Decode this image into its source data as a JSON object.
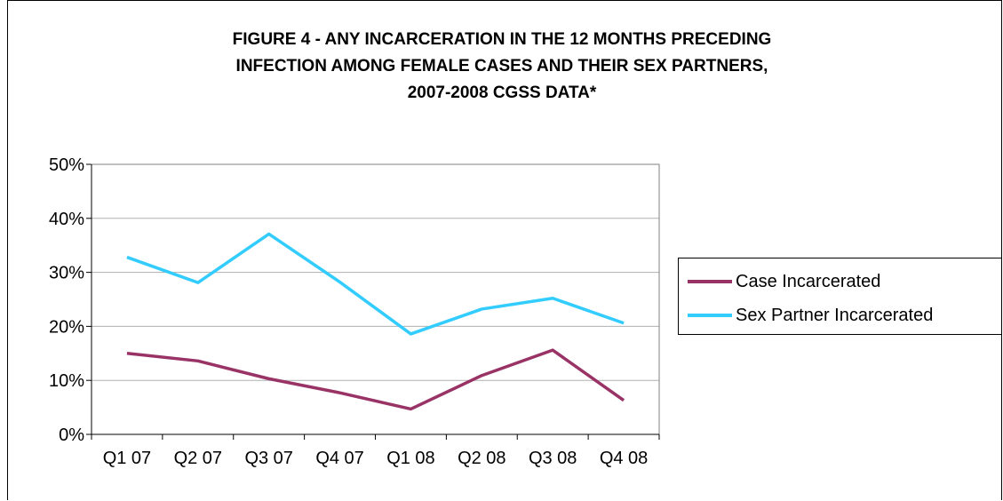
{
  "chart_data": {
    "type": "line",
    "title_lines": [
      "FIGURE 4 - ANY INCARCERATION IN THE 12 MONTHS PRECEDING",
      "INFECTION AMONG FEMALE CASES AND THEIR SEX PARTNERS,",
      "2007-2008 CGSS DATA*"
    ],
    "categories": [
      "Q1 07",
      "Q2 07",
      "Q3 07",
      "Q4 07",
      "Q1 08",
      "Q2 08",
      "Q3 08",
      "Q4 08"
    ],
    "y_ticks": [
      "0%",
      "10%",
      "20%",
      "30%",
      "40%",
      "50%"
    ],
    "ylim": [
      0,
      50
    ],
    "y_unit": "%",
    "grid": true,
    "legend_position": "right",
    "series": [
      {
        "name": "Case Incarcerated",
        "color": "#993366",
        "values": [
          15.0,
          13.6,
          10.3,
          7.7,
          4.7,
          10.9,
          15.6,
          6.3
        ]
      },
      {
        "name": "Sex Partner Incarcerated",
        "color": "#33CCFF",
        "values": [
          32.8,
          28.1,
          37.1,
          28.2,
          18.6,
          23.2,
          25.2,
          20.6
        ]
      }
    ]
  }
}
